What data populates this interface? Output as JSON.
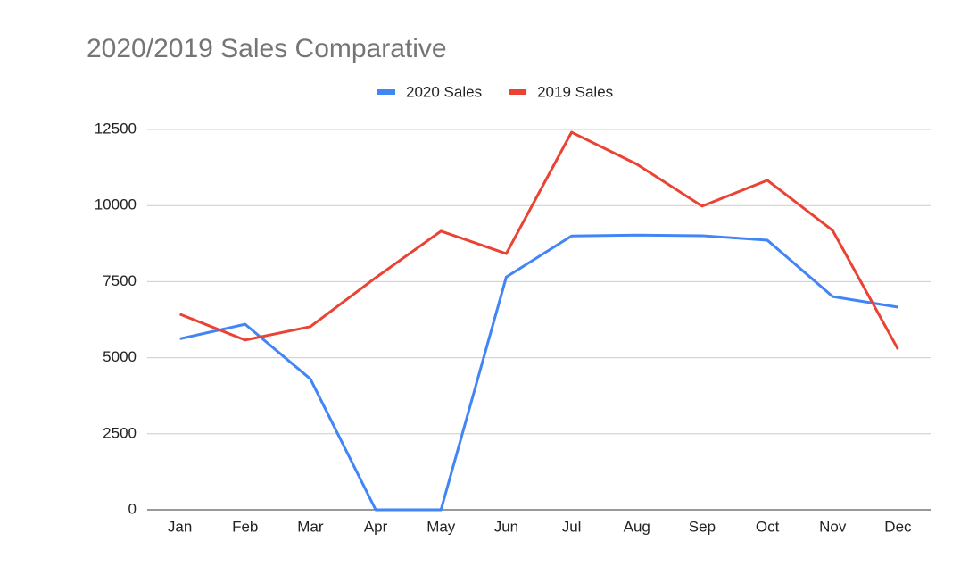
{
  "chart_data": {
    "type": "line",
    "title": "2020/2019 Sales Comparative",
    "categories": [
      "Jan",
      "Feb",
      "Mar",
      "Apr",
      "May",
      "Jun",
      "Jul",
      "Aug",
      "Sep",
      "Oct",
      "Nov",
      "Dec"
    ],
    "series": [
      {
        "name": "2020 Sales",
        "color": "#4285f4",
        "values": [
          5620,
          6100,
          4300,
          0,
          0,
          7650,
          9000,
          9030,
          9010,
          8860,
          7010,
          6660
        ]
      },
      {
        "name": "2019 Sales",
        "color": "#ea4335",
        "values": [
          6430,
          5580,
          6020,
          7630,
          9160,
          8420,
          12410,
          11360,
          9980,
          10830,
          9180,
          5280
        ]
      }
    ],
    "ylim": [
      0,
      12500
    ],
    "yticks": [
      0,
      2500,
      5000,
      7500,
      10000,
      12500
    ],
    "grid": true,
    "legend": "top"
  }
}
